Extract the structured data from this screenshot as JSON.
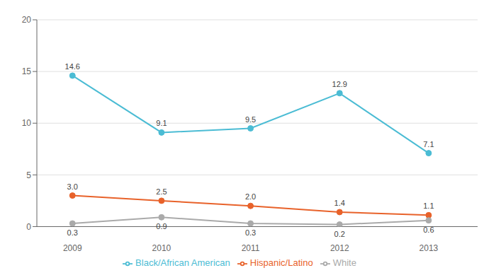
{
  "chart_data": {
    "type": "line",
    "x": [
      2009,
      2010,
      2011,
      2012,
      2013
    ],
    "series": [
      {
        "name": "Black/African American",
        "color": "#4BBCD4",
        "marker": "o",
        "values": [
          14.6,
          9.1,
          9.5,
          12.9,
          7.1
        ]
      },
      {
        "name": "Hispanic/Latino",
        "color": "#E8622A",
        "marker": "o",
        "values": [
          3.0,
          2.5,
          2.0,
          1.4,
          1.1
        ],
        "value_labels": [
          "3.0",
          "2.5",
          "2.0",
          "1.4",
          "1.1"
        ]
      },
      {
        "name": "White",
        "color": "#AAAAAA",
        "marker": "o",
        "values": [
          0.3,
          0.9,
          0.3,
          0.2,
          0.6
        ]
      }
    ],
    "xlim": [
      2008.6,
      2013.55
    ],
    "xticks": [
      2009,
      2010,
      2011,
      2012,
      2013
    ],
    "ylim": [
      0,
      20
    ],
    "yticks": [
      0,
      5,
      10,
      15,
      20
    ],
    "grid": true,
    "legend": "bottom",
    "data_labels": true
  }
}
